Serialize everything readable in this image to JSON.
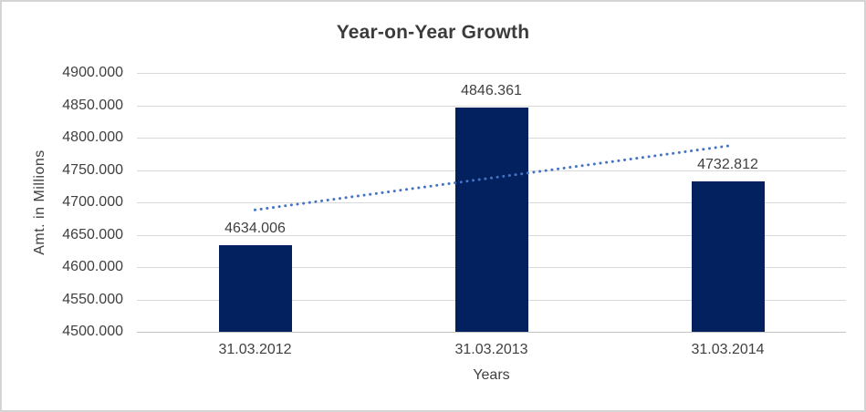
{
  "chart_data": {
    "type": "bar",
    "title": "Year-on-Year Growth",
    "xlabel": "Years",
    "ylabel": "Amt. in Millions",
    "categories": [
      "31.03.2012",
      "31.03.2013",
      "31.03.2014"
    ],
    "values": [
      4634.006,
      4846.361,
      4732.812
    ],
    "data_labels": [
      "4634.006",
      "4846.361",
      "4732.812"
    ],
    "ylim": [
      4500,
      4900
    ],
    "ytick_step": 50,
    "ytick_labels": [
      "4900.000",
      "4850.000",
      "4800.000",
      "4750.000",
      "4700.000",
      "4650.000",
      "4600.000",
      "4550.000",
      "4500.000"
    ],
    "grid": true,
    "legend": "none",
    "trendline": {
      "type": "linear",
      "style": "dotted",
      "endpoint_values": [
        4688.323,
        4787.129
      ]
    },
    "colors": {
      "bar": "#03215f",
      "trendline": "#4472c4",
      "grid": "#d9d9d9",
      "axis_line": "#c3c3c3",
      "text": "#404040",
      "title": "#3b3b3b",
      "frame_border": "#d4d4d4"
    }
  }
}
